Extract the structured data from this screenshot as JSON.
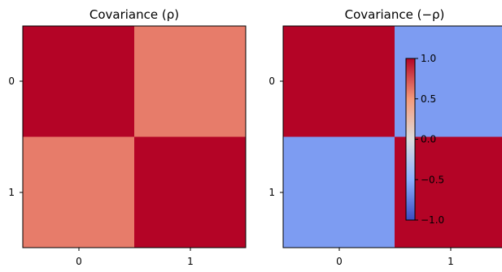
{
  "chart_data": [
    {
      "type": "heatmap",
      "title": "Covariance (ρ)",
      "x_ticks": [
        "0",
        "1"
      ],
      "y_ticks": [
        "0",
        "1"
      ],
      "matrix": [
        [
          1.0,
          0.6
        ],
        [
          0.6,
          1.0
        ]
      ],
      "colormap": "coolwarm",
      "vmin": -1.0,
      "vmax": 1.0
    },
    {
      "type": "heatmap",
      "title": "Covariance (−ρ)",
      "x_ticks": [
        "0",
        "1"
      ],
      "y_ticks": [
        "0",
        "1"
      ],
      "matrix": [
        [
          1.0,
          -0.6
        ],
        [
          -0.6,
          1.0
        ]
      ],
      "colormap": "coolwarm",
      "vmin": -1.0,
      "vmax": 1.0,
      "colorbar": {
        "ticks": [
          1.0,
          0.5,
          0.0,
          -0.5,
          -1.0
        ],
        "tick_labels": [
          "1.0",
          "0.5",
          "0.0",
          "−0.5",
          "−1.0"
        ]
      }
    }
  ]
}
